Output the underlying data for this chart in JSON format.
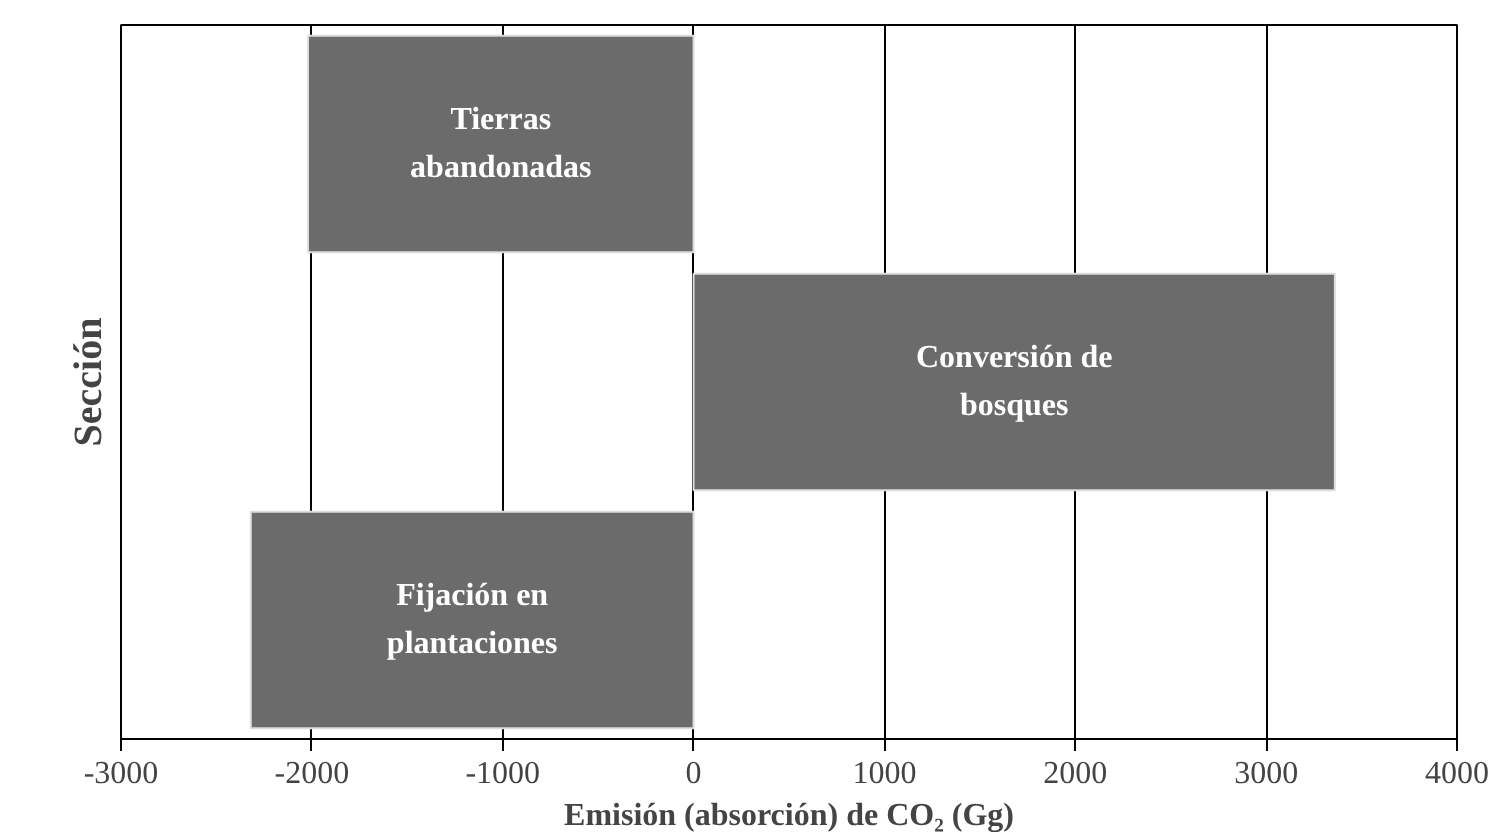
{
  "chart_data": {
    "type": "bar",
    "orientation": "horizontal",
    "xlabel": "Emisión (absorción) de CO₂ (Gg)",
    "ylabel": "Sección",
    "categories": [
      "Tierras\nabandonadas",
      "Conversión de\nbosques",
      "Fijación en\nplantaciones"
    ],
    "values": [
      -2020,
      3360,
      -2320
    ],
    "color": "#6b6b6b",
    "xlim": [
      -3000,
      4000
    ],
    "xticks": [
      -3000,
      -2000,
      -1000,
      0,
      1000,
      2000,
      3000,
      4000
    ],
    "grid": "x",
    "tick_labels": "x"
  }
}
